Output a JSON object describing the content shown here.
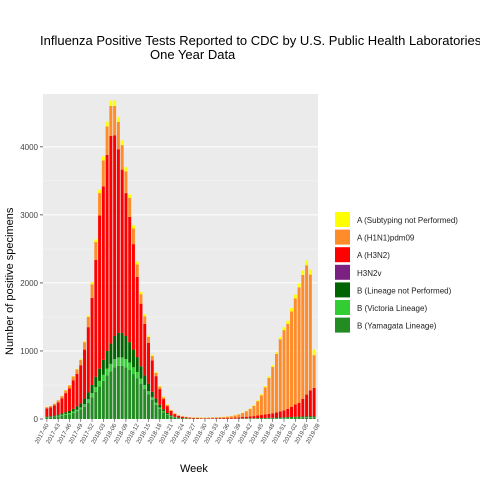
{
  "chart_data": {
    "type": "bar",
    "stacked": true,
    "title": "Influenza Positive Tests Reported to CDC by U.S. Public Health Laboratories",
    "subtitle": "One Year Data",
    "xlabel": "Week",
    "ylabel": "Number of positive specimens",
    "ylim": [
      0,
      4600
    ],
    "yticks": [
      0,
      1000,
      2000,
      3000,
      4000
    ],
    "legend_position": "right",
    "x_tick_labels": [
      "2017-40",
      "2017-43",
      "2017-46",
      "2017-49",
      "2017-52",
      "2018-03",
      "2018-06",
      "2018-09",
      "2018-12",
      "2018-15",
      "2018-18",
      "2018-21",
      "2018-24",
      "2018-27",
      "2018-30",
      "2018-33",
      "2018-36",
      "2018-39",
      "2018-42",
      "2018-45",
      "2018-48",
      "2018-51",
      "2019-02",
      "2019-05",
      "2019-08"
    ],
    "series": [
      {
        "name": "B (Yamagata Lineage)",
        "color": "#228B22",
        "values": [
          20,
          25,
          30,
          40,
          50,
          60,
          70,
          90,
          110,
          140,
          180,
          240,
          320,
          400,
          480,
          560,
          640,
          700,
          760,
          780,
          780,
          760,
          720,
          660,
          600,
          520,
          440,
          360,
          280,
          210,
          150,
          100,
          60,
          35,
          20,
          12,
          8,
          6,
          4,
          3,
          3,
          2,
          2,
          2,
          2,
          2,
          2,
          2,
          2,
          2,
          3,
          3,
          4,
          4,
          5,
          5,
          6,
          6,
          7,
          8,
          8,
          9,
          10,
          11,
          12,
          13,
          14,
          15,
          16,
          17,
          18,
          16
        ]
      },
      {
        "name": "B (Victoria Lineage)",
        "color": "#32CD32",
        "values": [
          5,
          6,
          8,
          10,
          12,
          15,
          18,
          20,
          25,
          30,
          40,
          50,
          60,
          70,
          80,
          90,
          100,
          110,
          120,
          125,
          125,
          120,
          110,
          100,
          90,
          75,
          60,
          50,
          40,
          30,
          20,
          15,
          10,
          6,
          4,
          3,
          2,
          2,
          1,
          1,
          1,
          1,
          1,
          1,
          1,
          1,
          1,
          1,
          1,
          1,
          1,
          1,
          2,
          2,
          2,
          2,
          3,
          3,
          3,
          4,
          4,
          4,
          5,
          5,
          6,
          6,
          7,
          7,
          8,
          8,
          9,
          8
        ]
      },
      {
        "name": "B (Lineage not Performed)",
        "color": "#006400",
        "values": [
          10,
          10,
          12,
          15,
          20,
          25,
          30,
          40,
          50,
          60,
          80,
          100,
          120,
          150,
          180,
          220,
          260,
          300,
          340,
          360,
          360,
          340,
          300,
          260,
          220,
          180,
          140,
          110,
          80,
          60,
          40,
          28,
          18,
          12,
          8,
          5,
          4,
          3,
          3,
          2,
          2,
          2,
          2,
          2,
          2,
          2,
          2,
          2,
          2,
          2,
          2,
          3,
          3,
          3,
          4,
          4,
          5,
          5,
          6,
          6,
          7,
          8,
          9,
          10,
          10,
          11,
          12,
          13,
          14,
          14,
          15,
          14
        ]
      },
      {
        "name": "H3N2v",
        "color": "#7B2182",
        "values": [
          0,
          0,
          0,
          0,
          0,
          0,
          0,
          0,
          0,
          0,
          0,
          0,
          0,
          0,
          0,
          0,
          0,
          0,
          0,
          0,
          0,
          0,
          0,
          0,
          0,
          0,
          0,
          0,
          0,
          0,
          0,
          0,
          0,
          0,
          0,
          0,
          0,
          0,
          0,
          0,
          0,
          0,
          0,
          0,
          0,
          0,
          0,
          0,
          0,
          0,
          0,
          0,
          0,
          0,
          0,
          0,
          0,
          0,
          0,
          0,
          0,
          0,
          0,
          0,
          0,
          0,
          0,
          0,
          0,
          0,
          0,
          0
        ]
      },
      {
        "name": "A (H3N2)",
        "color": "#FF0000",
        "values": [
          120,
          130,
          150,
          180,
          220,
          280,
          330,
          420,
          480,
          560,
          720,
          960,
          1280,
          1720,
          2250,
          2550,
          2880,
          3050,
          2950,
          2700,
          2400,
          2100,
          1840,
          1550,
          1180,
          920,
          760,
          600,
          460,
          330,
          230,
          150,
          100,
          65,
          40,
          28,
          20,
          16,
          12,
          10,
          9,
          8,
          8,
          8,
          8,
          9,
          10,
          10,
          12,
          13,
          15,
          17,
          20,
          24,
          28,
          32,
          38,
          44,
          50,
          58,
          66,
          76,
          88,
          100,
          120,
          150,
          180,
          200,
          260,
          320,
          380,
          420
        ]
      },
      {
        "name": "A (H1N1)pdm09",
        "color": "#FF8C2A",
        "values": [
          20,
          20,
          25,
          30,
          35,
          40,
          45,
          55,
          65,
          80,
          110,
          150,
          200,
          260,
          330,
          380,
          420,
          440,
          430,
          400,
          360,
          320,
          280,
          230,
          180,
          140,
          110,
          85,
          65,
          48,
          35,
          25,
          18,
          12,
          9,
          7,
          6,
          5,
          5,
          5,
          6,
          6,
          7,
          8,
          9,
          10,
          12,
          14,
          18,
          24,
          32,
          44,
          60,
          82,
          110,
          150,
          210,
          290,
          400,
          530,
          680,
          860,
          1060,
          1180,
          1250,
          1400,
          1560,
          1700,
          1820,
          1900,
          1700,
          480
        ]
      },
      {
        "name": "A (Subtyping not Performed)",
        "color": "#FFFF00",
        "values": [
          2,
          2,
          2,
          3,
          3,
          4,
          5,
          6,
          8,
          10,
          15,
          20,
          30,
          40,
          50,
          60,
          70,
          80,
          80,
          75,
          70,
          60,
          50,
          45,
          40,
          35,
          30,
          25,
          20,
          15,
          12,
          10,
          8,
          6,
          5,
          4,
          3,
          3,
          3,
          3,
          3,
          3,
          3,
          3,
          3,
          3,
          3,
          3,
          3,
          4,
          4,
          5,
          6,
          7,
          8,
          10,
          12,
          15,
          18,
          22,
          26,
          30,
          35,
          40,
          45,
          50,
          55,
          60,
          65,
          70,
          75,
          80
        ]
      }
    ]
  }
}
